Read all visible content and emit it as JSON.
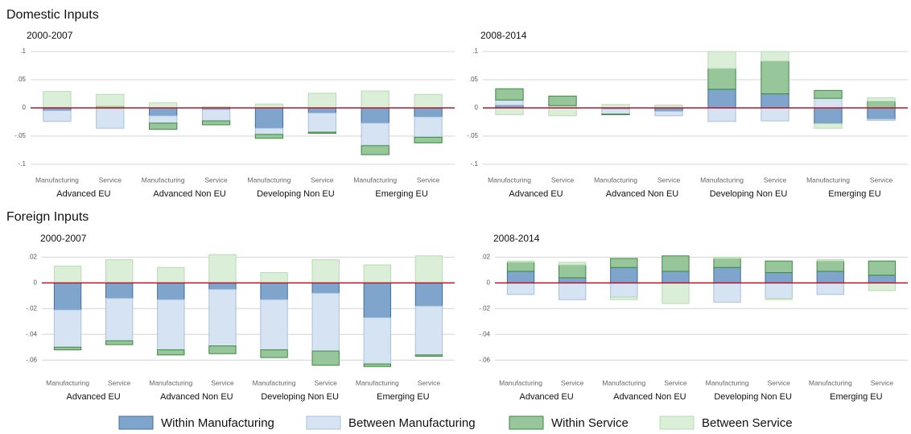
{
  "sections": [
    "Domestic Inputs",
    "Foreign Inputs"
  ],
  "chart_data": [
    {
      "type": "bar",
      "subtitle": "2000-2007",
      "categories": [
        "Manufacturing",
        "Service",
        "Manufacturing",
        "Service",
        "Manufacturing",
        "Service",
        "Manufacturing",
        "Service"
      ],
      "groups": [
        "Advanced EU",
        "Advanced Non EU",
        "Developing Non EU",
        "Emerging EU"
      ],
      "ylim": [
        -0.1,
        0.1
      ],
      "yticks": [
        {
          "value": -0.1,
          "label": "-.1"
        },
        {
          "value": -0.05,
          "label": "-.05"
        },
        0,
        {
          "value": 0.05,
          "label": ".05"
        },
        {
          "value": 0.1,
          "label": ".1"
        }
      ],
      "grid": true,
      "zero_line_color": "#b2182b",
      "series": [
        {
          "name": "Within Manufacturing",
          "color": "#7fa5cc",
          "edge": "#3e6e9f",
          "values": [
            -0.005,
            -0.001,
            -0.014,
            -0.003,
            -0.036,
            -0.009,
            -0.027,
            -0.016
          ]
        },
        {
          "name": "Between Manufacturing",
          "color": "#d6e3f2",
          "edge": "#a8c1dd",
          "values": [
            -0.019,
            -0.035,
            -0.013,
            -0.02,
            -0.011,
            -0.034,
            -0.04,
            -0.036
          ]
        },
        {
          "name": "Within Service",
          "color": "#97c69a",
          "edge": "#3b8a3f",
          "values": [
            0.001,
            0.003,
            -0.011,
            -0.007,
            -0.007,
            -0.002,
            -0.016,
            -0.01
          ]
        },
        {
          "name": "Between Service",
          "color": "#dbefd8",
          "edge": "#b6dcb2",
          "values": [
            0.028,
            0.021,
            0.009,
            0.002,
            0.007,
            0.026,
            0.03,
            0.024
          ]
        }
      ]
    },
    {
      "type": "bar",
      "subtitle": "2008-2014",
      "categories": [
        "Manufacturing",
        "Service",
        "Manufacturing",
        "Service",
        "Manufacturing",
        "Service",
        "Manufacturing",
        "Service"
      ],
      "groups": [
        "Advanced EU",
        "Advanced Non EU",
        "Developing Non EU",
        "Emerging EU"
      ],
      "ylim": [
        -0.1,
        0.1
      ],
      "yticks": [
        {
          "value": -0.1,
          "label": "-.1"
        },
        {
          "value": -0.05,
          "label": "-.05"
        },
        0,
        {
          "value": 0.05,
          "label": ".05"
        },
        {
          "value": 0.1,
          "label": ".1"
        }
      ],
      "grid": true,
      "zero_line_color": "#b2182b",
      "series": [
        {
          "color": "#7fa5cc",
          "edge": "#3e6e9f",
          "values": [
            0.005,
            0.0,
            -0.002,
            -0.006,
            0.033,
            0.025,
            -0.028,
            -0.02
          ]
        },
        {
          "color": "#d6e3f2",
          "edge": "#a8c1dd",
          "values": [
            0.009,
            0.004,
            -0.009,
            -0.008,
            -0.024,
            -0.023,
            0.017,
            -0.002
          ]
        },
        {
          "color": "#97c69a",
          "edge": "#3b8a3f",
          "values": [
            0.02,
            0.017,
            -0.001,
            0.001,
            0.037,
            0.058,
            0.014,
            0.012
          ]
        },
        {
          "color": "#dbefd8",
          "edge": "#b6dcb2",
          "values": [
            -0.012,
            -0.014,
            0.006,
            0.004,
            0.03,
            0.017,
            -0.008,
            0.006
          ]
        }
      ]
    },
    {
      "type": "bar",
      "subtitle": "2000-2007",
      "categories": [
        "Manufacturing",
        "Service",
        "Manufacturing",
        "Service",
        "Manufacturing",
        "Service",
        "Manufacturing",
        "Service"
      ],
      "groups": [
        "Advanced EU",
        "Advanced Non EU",
        "Developing Non EU",
        "Emerging EU"
      ],
      "ylim": [
        -0.068,
        0.024
      ],
      "yticks": [
        {
          "value": -0.06,
          "label": "-.06"
        },
        {
          "value": -0.04,
          "label": "-.04"
        },
        {
          "value": -0.02,
          "label": "-.02"
        },
        0,
        {
          "value": 0.02,
          "label": ".02"
        }
      ],
      "grid": true,
      "zero_line_color": "#b2182b",
      "series": [
        {
          "color": "#7fa5cc",
          "edge": "#3e6e9f",
          "values": [
            -0.021,
            -0.012,
            -0.013,
            -0.005,
            -0.013,
            -0.008,
            -0.027,
            -0.018
          ]
        },
        {
          "color": "#d6e3f2",
          "edge": "#a8c1dd",
          "values": [
            -0.029,
            -0.033,
            -0.039,
            -0.044,
            -0.039,
            -0.045,
            -0.036,
            -0.038
          ]
        },
        {
          "color": "#97c69a",
          "edge": "#3b8a3f",
          "values": [
            -0.002,
            -0.003,
            -0.004,
            -0.006,
            -0.006,
            -0.011,
            -0.002,
            -0.001
          ]
        },
        {
          "color": "#dbefd8",
          "edge": "#b6dcb2",
          "values": [
            0.013,
            0.018,
            0.012,
            0.022,
            0.008,
            0.018,
            0.014,
            0.021
          ]
        }
      ]
    },
    {
      "type": "bar",
      "subtitle": "2008-2014",
      "categories": [
        "Manufacturing",
        "Service",
        "Manufacturing",
        "Service",
        "Manufacturing",
        "Service",
        "Manufacturing",
        "Service"
      ],
      "groups": [
        "Advanced EU",
        "Advanced Non EU",
        "Developing Non EU",
        "Emerging EU"
      ],
      "ylim": [
        -0.068,
        0.024
      ],
      "yticks": [
        {
          "value": -0.06,
          "label": "-.06"
        },
        {
          "value": -0.04,
          "label": "-.04"
        },
        {
          "value": -0.02,
          "label": "-.02"
        },
        0,
        {
          "value": 0.02,
          "label": ".02"
        }
      ],
      "grid": true,
      "zero_line_color": "#b2182b",
      "series": [
        {
          "color": "#7fa5cc",
          "edge": "#3e6e9f",
          "values": [
            0.009,
            0.004,
            0.012,
            0.009,
            0.012,
            0.008,
            0.009,
            0.006
          ]
        },
        {
          "color": "#d6e3f2",
          "edge": "#a8c1dd",
          "values": [
            -0.009,
            -0.013,
            -0.011,
            0.0,
            -0.015,
            -0.012,
            -0.009,
            0.0
          ]
        },
        {
          "color": "#97c69a",
          "edge": "#3b8a3f",
          "values": [
            0.007,
            0.01,
            0.007,
            0.012,
            0.007,
            0.009,
            0.008,
            0.011
          ]
        },
        {
          "color": "#dbefd8",
          "edge": "#b6dcb2",
          "values": [
            0.001,
            0.002,
            -0.002,
            -0.016,
            0.001,
            -0.001,
            0.001,
            -0.006
          ]
        }
      ]
    }
  ]
}
